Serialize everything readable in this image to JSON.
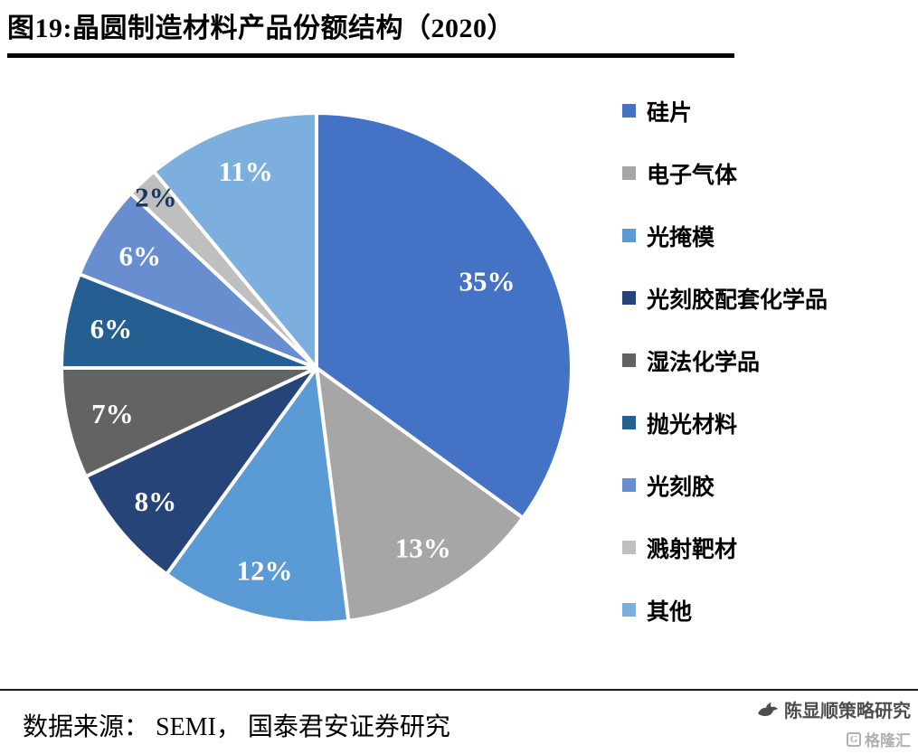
{
  "title": "图19:晶圆制造材料产品份额结构（2020）",
  "source_note": "数据来源： SEMI， 国泰君安证券研究",
  "footer": {
    "account_name": "陈显顺策略研究",
    "watermark": "格隆汇",
    "watermark_icon_letter": "G"
  },
  "chart_data": {
    "type": "pie",
    "title": "图19:晶圆制造材料产品份额结构（2020）",
    "start_angle_deg": 0,
    "direction": "clockwise",
    "legend_position": "right",
    "label_color": "#FFFFFF",
    "dark_label_color": "#17375E",
    "dark_label_slices": [
      "溅射靶材"
    ],
    "slices": [
      {
        "label": "硅片",
        "value": 35,
        "display": "35%",
        "color": "#4472C4"
      },
      {
        "label": "电子气体",
        "value": 13,
        "display": "13%",
        "color": "#A6A6A6"
      },
      {
        "label": "光掩模",
        "value": 12,
        "display": "12%",
        "color": "#5B9BD5"
      },
      {
        "label": "光刻胶配套化学品",
        "value": 8,
        "display": "8%",
        "color": "#264478"
      },
      {
        "label": "湿法化学品",
        "value": 7,
        "display": "7%",
        "color": "#636363"
      },
      {
        "label": "抛光材料",
        "value": 6,
        "display": "6%",
        "color": "#255E91"
      },
      {
        "label": "光刻胶",
        "value": 6,
        "display": "6%",
        "color": "#698ED0"
      },
      {
        "label": "溅射靶材",
        "value": 2,
        "display": "2%",
        "color": "#BFBFBF"
      },
      {
        "label": "其他",
        "value": 11,
        "display": "11%",
        "color": "#7CAFDD"
      }
    ]
  }
}
